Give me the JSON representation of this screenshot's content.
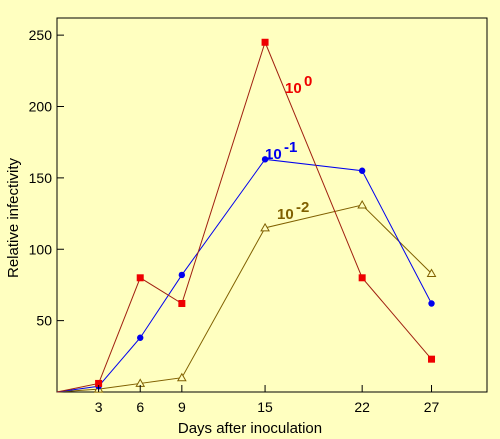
{
  "chart_data": {
    "type": "line",
    "title": "",
    "xlabel": "Days after inoculation",
    "ylabel": "Relative infectivity",
    "xlim": [
      0,
      31
    ],
    "ylim": [
      0,
      262
    ],
    "xticks": [
      3,
      6,
      9,
      15,
      22,
      27
    ],
    "yticks": [
      50,
      100,
      150,
      200,
      250
    ],
    "grid": false,
    "legend": "none",
    "series": [
      {
        "label_base": "10",
        "label_exp": "0",
        "color": "#ee0000",
        "line_color": "#a02010",
        "marker": "square",
        "x": [
          0,
          3,
          6,
          9,
          15,
          22,
          27
        ],
        "y": [
          0,
          6,
          80,
          62,
          245,
          80,
          23
        ]
      },
      {
        "label_base": "10",
        "label_exp": "-1",
        "color": "#0000ee",
        "line_color": "#0000ee",
        "marker": "circle",
        "x": [
          0,
          3,
          6,
          9,
          15,
          22,
          27
        ],
        "y": [
          0,
          4,
          38,
          82,
          163,
          155,
          62
        ]
      },
      {
        "label_base": "10",
        "label_exp": "-2",
        "color": "#806000",
        "line_color": "#806000",
        "marker": "triangle",
        "x": [
          0,
          3,
          6,
          9,
          15,
          22,
          27
        ],
        "y": [
          0,
          2,
          6,
          10,
          115,
          131,
          83
        ]
      }
    ]
  }
}
